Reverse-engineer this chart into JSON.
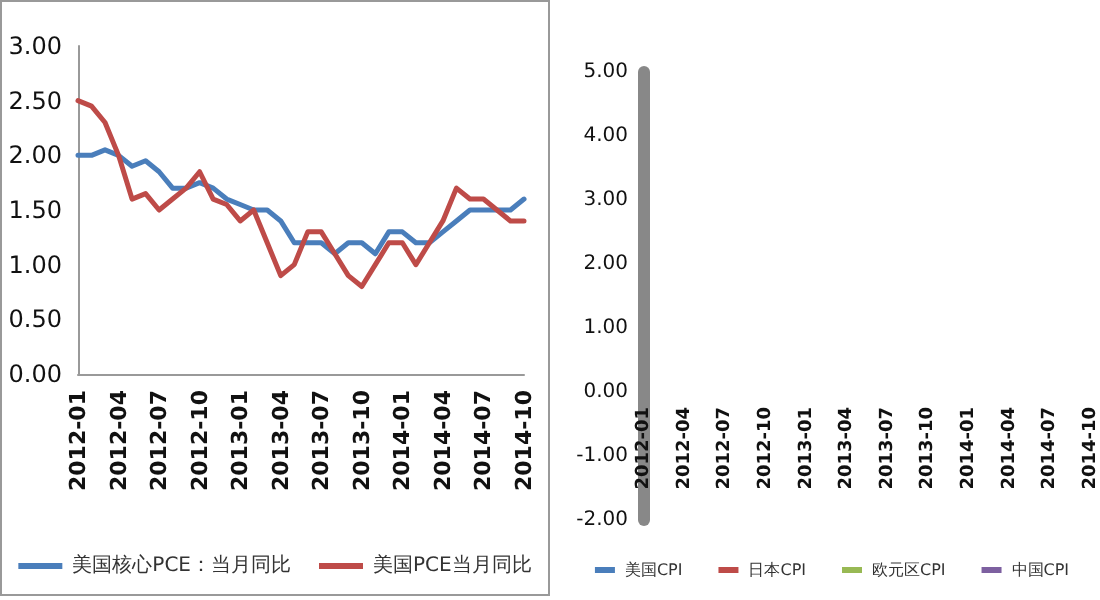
{
  "chart_data": [
    {
      "type": "line",
      "categories": [
        "2012-01",
        null,
        null,
        "2012-04",
        null,
        null,
        "2012-07",
        null,
        null,
        "2012-10",
        null,
        null,
        "2013-01",
        null,
        null,
        "2013-04",
        null,
        null,
        "2013-07",
        null,
        null,
        "2013-10",
        null,
        null,
        "2014-01",
        null,
        null,
        "2014-04",
        null,
        null,
        "2014-07",
        null,
        null,
        "2014-10"
      ],
      "series": [
        {
          "name": "美国核心PCE：当月同比",
          "color": "#4a7ebb",
          "values": [
            2.0,
            2.0,
            2.05,
            2.0,
            1.9,
            1.95,
            1.85,
            1.7,
            1.7,
            1.75,
            1.7,
            1.6,
            1.55,
            1.5,
            1.5,
            1.4,
            1.2,
            1.2,
            1.2,
            1.1,
            1.2,
            1.2,
            1.1,
            1.3,
            1.3,
            1.2,
            1.2,
            1.3,
            1.4,
            1.5,
            1.5,
            1.5,
            1.5,
            1.6
          ]
        },
        {
          "name": "美国PCE当月同比",
          "color": "#be4b48",
          "values": [
            2.5,
            2.45,
            2.3,
            2.0,
            1.6,
            1.65,
            1.5,
            1.6,
            1.7,
            1.85,
            1.6,
            1.55,
            1.4,
            1.5,
            1.2,
            0.9,
            1.0,
            1.3,
            1.3,
            1.1,
            0.9,
            0.8,
            1.0,
            1.2,
            1.2,
            1.0,
            1.2,
            1.4,
            1.7,
            1.6,
            1.6,
            1.5,
            1.4,
            1.4
          ]
        }
      ],
      "ylim": [
        0,
        3
      ],
      "yticks": [
        {
          "value": 0,
          "label": "0.00"
        },
        {
          "value": 0.5,
          "label": "0.50"
        },
        {
          "value": 1,
          "label": "1.00"
        },
        {
          "value": 1.5,
          "label": "1.50"
        },
        {
          "value": 2,
          "label": "2.00"
        },
        {
          "value": 2.5,
          "label": "2.50"
        },
        {
          "value": 3,
          "label": "3.00"
        }
      ],
      "legend": "bottom",
      "grid": false,
      "marker": "none"
    },
    {
      "type": "line",
      "categories": [
        "2012-01",
        null,
        null,
        "2012-04",
        null,
        null,
        "2012-07",
        null,
        null,
        "2012-10",
        null,
        null,
        "2013-01",
        null,
        null,
        "2013-04",
        null,
        null,
        "2013-07",
        null,
        null,
        "2013-10",
        null,
        null,
        "2014-01",
        null,
        null,
        "2014-04",
        null,
        null,
        "2014-07",
        null,
        null,
        "2014-10"
      ],
      "series": [
        {
          "name": "美国CPI",
          "color": "#4a7ebb",
          "values": [
            null,
            null,
            null,
            null,
            null,
            null,
            null,
            null,
            null,
            null,
            null,
            null,
            null,
            null,
            null,
            null,
            null,
            null,
            null,
            null,
            null,
            null,
            null,
            null,
            null,
            null,
            null,
            null,
            null,
            null,
            null,
            null,
            null,
            null
          ]
        },
        {
          "name": "日本CPI",
          "color": "#be4b48",
          "values": [
            null,
            null,
            null,
            null,
            null,
            null,
            null,
            null,
            null,
            null,
            null,
            null,
            null,
            null,
            null,
            null,
            null,
            null,
            null,
            null,
            null,
            null,
            null,
            null,
            null,
            null,
            null,
            null,
            null,
            null,
            null,
            null,
            null,
            null
          ]
        },
        {
          "name": "欧元区CPI",
          "color": "#98b954",
          "values": [
            null,
            null,
            null,
            null,
            null,
            null,
            null,
            null,
            null,
            null,
            null,
            null,
            null,
            null,
            null,
            null,
            null,
            null,
            null,
            null,
            null,
            null,
            null,
            null,
            null,
            null,
            null,
            null,
            null,
            null,
            null,
            null,
            null,
            null
          ]
        },
        {
          "name": "中国CPI",
          "color": "#7d60a0",
          "values": [
            null,
            null,
            null,
            null,
            null,
            null,
            null,
            null,
            null,
            null,
            null,
            null,
            null,
            null,
            null,
            null,
            null,
            null,
            null,
            null,
            null,
            null,
            null,
            null,
            null,
            null,
            null,
            null,
            null,
            null,
            null,
            null,
            null,
            null
          ]
        }
      ],
      "ylim": [
        -2,
        5
      ],
      "yticks": [
        {
          "value": -2,
          "label": "-2.00"
        },
        {
          "value": -1,
          "label": "-1.00"
        },
        {
          "value": 0,
          "label": "0.00"
        },
        {
          "value": 1,
          "label": "1.00"
        },
        {
          "value": 2,
          "label": "2.00"
        },
        {
          "value": 3,
          "label": "3.00"
        },
        {
          "value": 4,
          "label": "4.00"
        },
        {
          "value": 5,
          "label": "5.00"
        }
      ],
      "legend": "bottom",
      "grid": false,
      "marker": "none"
    }
  ]
}
